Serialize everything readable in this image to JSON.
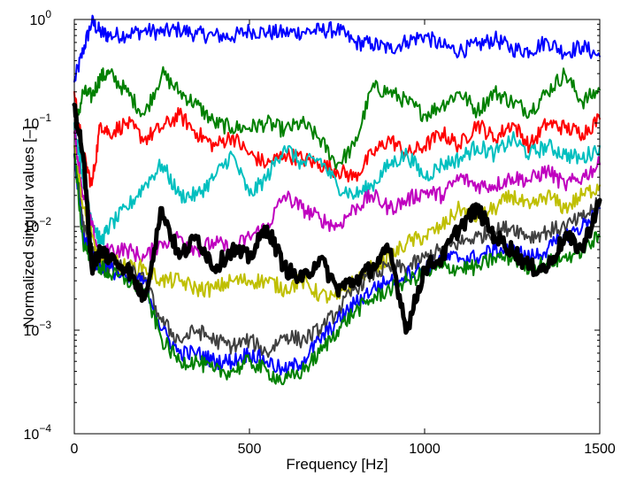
{
  "chart_data": {
    "type": "line",
    "title": "",
    "xlabel": "Frequency [Hz]",
    "ylabel": "Normalized singular values [–]",
    "xlim": [
      0,
      1500
    ],
    "ylim": [
      0.0001,
      1
    ],
    "yscale": "log",
    "grid": false,
    "legend": "none",
    "x_ticks": [
      {
        "value": 0,
        "label": "0"
      },
      {
        "value": 500,
        "label": "500"
      },
      {
        "value": 1000,
        "label": "1000"
      },
      {
        "value": 1500,
        "label": "1500"
      }
    ],
    "y_ticks": [
      {
        "value": 0.0001,
        "base": "10",
        "exp": "−4"
      },
      {
        "value": 0.001,
        "base": "10",
        "exp": "−3"
      },
      {
        "value": 0.01,
        "base": "10",
        "exp": "−2"
      },
      {
        "value": 0.1,
        "base": "10",
        "exp": "−1"
      },
      {
        "value": 1,
        "base": "10",
        "exp": "0"
      }
    ],
    "x": [
      0,
      25,
      50,
      75,
      100,
      150,
      200,
      250,
      300,
      350,
      400,
      450,
      500,
      550,
      600,
      650,
      700,
      750,
      800,
      850,
      900,
      950,
      1000,
      1050,
      1100,
      1150,
      1200,
      1250,
      1300,
      1350,
      1400,
      1450,
      1500
    ],
    "series": [
      {
        "color": "#0000ff",
        "width": 2,
        "values": [
          0.25,
          0.5,
          0.95,
          0.75,
          0.7,
          0.72,
          0.78,
          0.75,
          0.8,
          0.72,
          0.7,
          0.68,
          0.78,
          0.75,
          0.74,
          0.76,
          0.78,
          0.8,
          0.6,
          0.58,
          0.52,
          0.62,
          0.7,
          0.55,
          0.5,
          0.56,
          0.65,
          0.52,
          0.5,
          0.62,
          0.48,
          0.55,
          0.44
        ]
      },
      {
        "color": "#008000",
        "width": 2,
        "values": [
          0.08,
          0.2,
          0.18,
          0.28,
          0.3,
          0.2,
          0.12,
          0.3,
          0.2,
          0.15,
          0.1,
          0.09,
          0.09,
          0.1,
          0.085,
          0.1,
          0.07,
          0.04,
          0.06,
          0.22,
          0.2,
          0.16,
          0.12,
          0.15,
          0.2,
          0.13,
          0.2,
          0.16,
          0.13,
          0.2,
          0.3,
          0.16,
          0.21
        ]
      },
      {
        "color": "#ff0000",
        "width": 2,
        "values": [
          0.2,
          0.05,
          0.025,
          0.1,
          0.08,
          0.1,
          0.07,
          0.09,
          0.12,
          0.08,
          0.06,
          0.075,
          0.05,
          0.04,
          0.05,
          0.045,
          0.04,
          0.035,
          0.03,
          0.05,
          0.07,
          0.05,
          0.06,
          0.08,
          0.06,
          0.1,
          0.07,
          0.1,
          0.06,
          0.1,
          0.09,
          0.08,
          0.11
        ]
      },
      {
        "color": "#00bfbf",
        "width": 2,
        "values": [
          0.1,
          0.03,
          0.012,
          0.007,
          0.01,
          0.015,
          0.025,
          0.04,
          0.02,
          0.02,
          0.03,
          0.05,
          0.02,
          0.03,
          0.06,
          0.04,
          0.045,
          0.025,
          0.02,
          0.025,
          0.04,
          0.05,
          0.03,
          0.04,
          0.045,
          0.06,
          0.05,
          0.07,
          0.05,
          0.06,
          0.05,
          0.045,
          0.06
        ]
      },
      {
        "color": "#bf00bf",
        "width": 2,
        "values": [
          0.08,
          0.02,
          0.01,
          0.005,
          0.006,
          0.006,
          0.005,
          0.007,
          0.008,
          0.006,
          0.007,
          0.006,
          0.008,
          0.01,
          0.02,
          0.015,
          0.012,
          0.01,
          0.015,
          0.02,
          0.015,
          0.018,
          0.022,
          0.02,
          0.03,
          0.025,
          0.025,
          0.03,
          0.028,
          0.035,
          0.025,
          0.03,
          0.04
        ]
      },
      {
        "color": "#bfbf00",
        "width": 2,
        "values": [
          0.06,
          0.015,
          0.008,
          0.004,
          0.005,
          0.004,
          0.004,
          0.003,
          0.003,
          0.0025,
          0.0025,
          0.003,
          0.003,
          0.003,
          0.0025,
          0.003,
          0.0022,
          0.002,
          0.003,
          0.004,
          0.005,
          0.007,
          0.008,
          0.01,
          0.015,
          0.012,
          0.015,
          0.02,
          0.015,
          0.02,
          0.015,
          0.02,
          0.025
        ]
      },
      {
        "color": "#404040",
        "width": 2,
        "values": [
          0.05,
          0.01,
          0.006,
          0.004,
          0.004,
          0.004,
          0.003,
          0.0012,
          0.0008,
          0.001,
          0.0008,
          0.0007,
          0.0008,
          0.0006,
          0.0009,
          0.0008,
          0.001,
          0.0015,
          0.0025,
          0.0035,
          0.004,
          0.004,
          0.005,
          0.006,
          0.007,
          0.008,
          0.009,
          0.01,
          0.008,
          0.009,
          0.01,
          0.012,
          0.017
        ]
      },
      {
        "color": "#0000ff",
        "width": 2,
        "values": [
          0.05,
          0.008,
          0.005,
          0.004,
          0.004,
          0.003,
          0.003,
          0.001,
          0.0006,
          0.0006,
          0.0005,
          0.0005,
          0.0006,
          0.0005,
          0.0004,
          0.0005,
          0.0008,
          0.0012,
          0.0018,
          0.0025,
          0.003,
          0.0035,
          0.004,
          0.005,
          0.005,
          0.005,
          0.006,
          0.006,
          0.005,
          0.006,
          0.008,
          0.01,
          0.015
        ]
      },
      {
        "color": "#008000",
        "width": 2,
        "values": [
          0.05,
          0.007,
          0.005,
          0.004,
          0.0035,
          0.003,
          0.0025,
          0.0008,
          0.0005,
          0.0005,
          0.0004,
          0.0004,
          0.0005,
          0.0004,
          0.00032,
          0.0004,
          0.0006,
          0.001,
          0.0015,
          0.002,
          0.0025,
          0.003,
          0.0035,
          0.004,
          0.004,
          0.004,
          0.005,
          0.005,
          0.004,
          0.0045,
          0.005,
          0.006,
          0.008
        ]
      },
      {
        "color": "#000000",
        "width": 5,
        "values": [
          0.15,
          0.05,
          0.004,
          0.006,
          0.005,
          0.004,
          0.002,
          0.015,
          0.005,
          0.008,
          0.004,
          0.006,
          0.005,
          0.01,
          0.004,
          0.003,
          0.005,
          0.0025,
          0.003,
          0.004,
          0.006,
          0.001,
          0.004,
          0.005,
          0.01,
          0.015,
          0.008,
          0.006,
          0.004,
          0.004,
          0.008,
          0.006,
          0.018
        ]
      }
    ]
  }
}
